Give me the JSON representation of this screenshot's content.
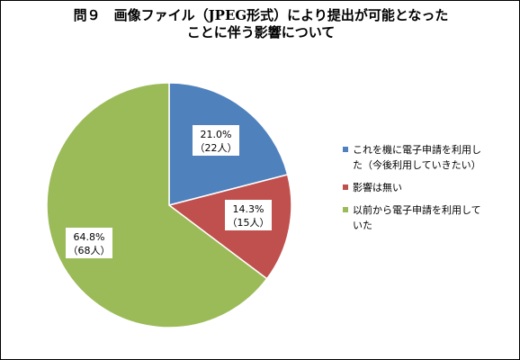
{
  "title": {
    "line1": "問９　画像ファイル（JPEG形式）により提出が可能となった",
    "line2": "ことに伴う影響について"
  },
  "chart_data": {
    "type": "pie",
    "title": "問９　画像ファイル（JPEG形式）により提出が可能となったことに伴う影響について",
    "start_angle_deg": 90,
    "direction": "clockwise",
    "slices": [
      {
        "label": "これを機に電子申請を利用した（今後利用していきたい）",
        "percent": 21.0,
        "count": 22,
        "percent_text": "21.0%",
        "count_text": "（22人）",
        "color": "#4F81BD"
      },
      {
        "label": "影響は無い",
        "percent": 14.3,
        "count": 15,
        "percent_text": "14.3%",
        "count_text": "（15人）",
        "color": "#C0504D"
      },
      {
        "label": "以前から電子申請を利用していた",
        "percent": 64.8,
        "count": 68,
        "percent_text": "64.8%",
        "count_text": "（68人）",
        "color": "#9BBB59"
      }
    ]
  },
  "legend": {
    "position": "right",
    "items": [
      {
        "line1": "これを機に電子申請を利用し",
        "line2": "た（今後利用していきたい）",
        "color": "#4F81BD"
      },
      {
        "line1": "影響は無い",
        "line2": "",
        "color": "#C0504D"
      },
      {
        "line1": "以前から電子申請を利用して",
        "line2": "いた",
        "color": "#9BBB59"
      }
    ]
  }
}
